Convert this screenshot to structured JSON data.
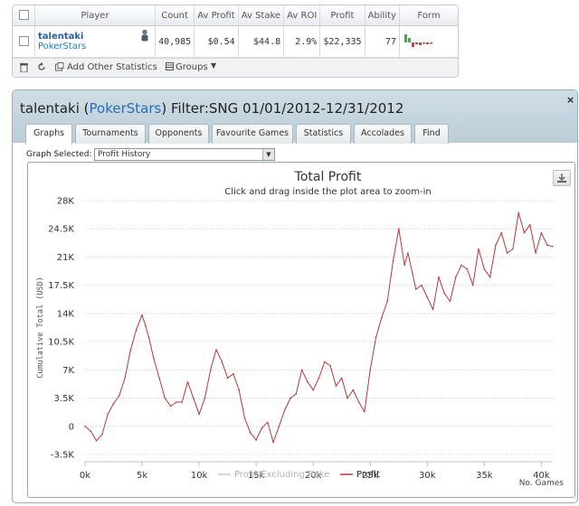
{
  "player_table": {
    "headers": [
      "Player",
      "Count",
      "Av Profit",
      "Av Stake",
      "Av ROI",
      "Profit",
      "Ability",
      "Form"
    ],
    "row": {
      "name": "talentaki",
      "site": "PokerStars",
      "count": "40,985",
      "av_profit": "$0.54",
      "av_stake": "$44.8",
      "av_roi": "2.9%",
      "profit": "$22,335",
      "ability": "77"
    },
    "toolbar": {
      "add_stats": "Add Other Statistics",
      "groups": "Groups"
    },
    "form_colors": {
      "up": "#3fae3f",
      "down": "#d23b3b"
    }
  },
  "panel": {
    "player": "talentaki",
    "site": "PokerStars",
    "filter": "Filter:SNG 01/01/2012-12/31/2012",
    "tabs": [
      "Graphs",
      "Tournaments",
      "Opponents",
      "Favourite Games",
      "Statistics",
      "Accolades",
      "Find"
    ],
    "active_tab": "Graphs",
    "graph_selected_label": "Graph Selected:",
    "graph_selected_value": "Profit History",
    "close_glyph": "×"
  },
  "chart_data": {
    "type": "line",
    "title": "Total Profit",
    "subtitle": "Click and drag inside the plot area to zoom-in",
    "xlabel": "No. Games",
    "ylabel": "Cumulative Total (USD)",
    "xlim": [
      0,
      41000
    ],
    "ylim": [
      -3500,
      28000
    ],
    "x_ticks": [
      0,
      5000,
      10000,
      15000,
      20000,
      25000,
      30000,
      35000,
      40000
    ],
    "x_tick_labels": [
      "0k",
      "5k",
      "10k",
      "15k",
      "20k",
      "25k",
      "30k",
      "35k",
      "40k"
    ],
    "y_ticks": [
      -3500,
      0,
      3500,
      7000,
      10500,
      14000,
      17500,
      21000,
      24500,
      28000
    ],
    "y_tick_labels": [
      "-3.5K",
      "0",
      "3.5K",
      "7K",
      "10.5K",
      "14K",
      "17.5K",
      "21K",
      "24.5K",
      "28K"
    ],
    "grid": "horizontal dotted",
    "legend_position": "bottom-center",
    "series": [
      {
        "name": "Profit Excluding Rake",
        "color": "#c8c8c8",
        "visible": false,
        "values": []
      },
      {
        "name": "Profit",
        "color": "#b23a3a",
        "visible": true,
        "x": [
          0,
          500,
          1000,
          1500,
          2000,
          2500,
          3000,
          3500,
          4000,
          4500,
          5000,
          5300,
          5600,
          6000,
          6500,
          7000,
          7500,
          8000,
          8500,
          9000,
          9500,
          10000,
          10500,
          11000,
          11500,
          12000,
          12500,
          13000,
          13500,
          14000,
          14500,
          15000,
          15500,
          16000,
          16500,
          17000,
          17500,
          18000,
          18500,
          19000,
          19500,
          20000,
          20500,
          21000,
          21500,
          22000,
          22500,
          23000,
          23500,
          24000,
          24500,
          25000,
          25500,
          26000,
          26500,
          27000,
          27500,
          28000,
          28300,
          28700,
          29000,
          29500,
          30000,
          30500,
          31000,
          31500,
          32000,
          32500,
          33000,
          33500,
          34000,
          34500,
          35000,
          35500,
          36000,
          36500,
          37000,
          37500,
          38000,
          38500,
          39000,
          39500,
          40000,
          40500,
          41000
        ],
        "values": [
          0,
          -600,
          -1800,
          -1000,
          1500,
          2800,
          3800,
          6000,
          9500,
          12000,
          13800,
          12500,
          11000,
          8500,
          6000,
          3500,
          2500,
          3000,
          3000,
          5500,
          3500,
          1500,
          3500,
          7000,
          9500,
          8000,
          6000,
          6500,
          4500,
          1000,
          -800,
          -1700,
          -200,
          500,
          -2000,
          0,
          2000,
          3500,
          4000,
          7000,
          5500,
          4500,
          6000,
          8000,
          7500,
          5000,
          6000,
          3500,
          4500,
          3000,
          1800,
          7000,
          11000,
          13500,
          15500,
          20500,
          24500,
          20000,
          21500,
          19000,
          17000,
          17500,
          16000,
          14500,
          18500,
          16500,
          15500,
          18500,
          20000,
          19500,
          17500,
          22000,
          19500,
          18500,
          22500,
          24000,
          21500,
          22000,
          26500,
          24000,
          25000,
          21500,
          24000,
          22500,
          22300
        ]
      }
    ]
  }
}
